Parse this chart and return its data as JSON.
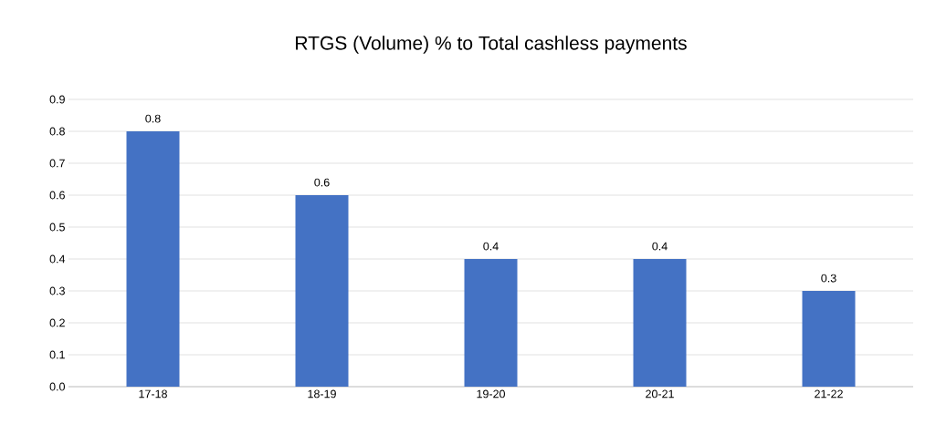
{
  "chart_data": {
    "type": "bar",
    "title": "RTGS (Volume) % to Total cashless payments",
    "categories": [
      "17-18",
      "18-19",
      "19-20",
      "20-21",
      "21-22"
    ],
    "values": [
      0.8,
      0.6,
      0.4,
      0.4,
      0.3
    ],
    "color": "#4472c4",
    "ylim": [
      0,
      0.9
    ],
    "yticks": [
      {
        "value": 0,
        "label": "0.0"
      },
      0.1,
      0.2,
      0.3,
      0.4,
      0.5,
      0.6,
      0.7,
      0.8,
      0.9
    ],
    "grid": "y",
    "data_labels": true
  }
}
